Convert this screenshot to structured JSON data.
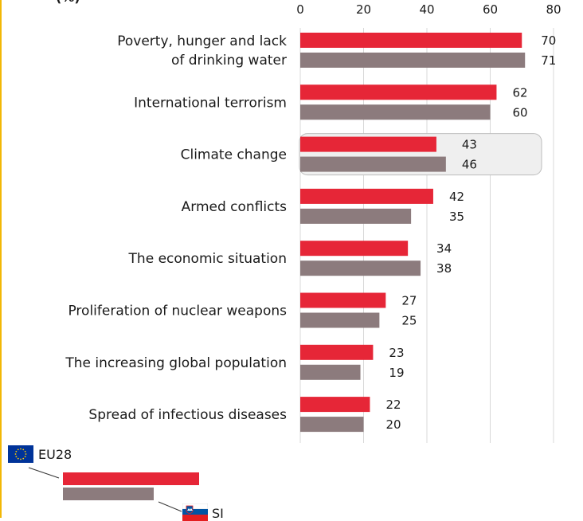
{
  "chart_data": {
    "type": "bar",
    "orientation": "horizontal",
    "unit_label": "(%)",
    "categories": [
      [
        "Poverty, hunger and lack",
        "of drinking water"
      ],
      [
        "International terrorism"
      ],
      [
        "Climate change"
      ],
      [
        "Armed conflicts"
      ],
      [
        "The economic situation"
      ],
      [
        "Proliferation of nuclear weapons"
      ],
      [
        "The increasing global population"
      ],
      [
        "Spread of infectious diseases"
      ]
    ],
    "series": [
      {
        "name": "EU28",
        "color": "#e62637",
        "values": [
          70,
          62,
          43,
          42,
          34,
          27,
          23,
          22
        ]
      },
      {
        "name": "SI",
        "color": "#8c7b7d",
        "values": [
          71,
          60,
          46,
          35,
          38,
          25,
          19,
          20
        ]
      }
    ],
    "xlim": [
      0,
      80
    ],
    "xticks": [
      0,
      20,
      40,
      60,
      80
    ],
    "grid": true,
    "highlighted_category": "Climate change",
    "legend_position": "bottom-left"
  },
  "legend": {
    "eu_label": "EU28",
    "si_label": "SI",
    "eu_flag_icon": "eu-flag-icon",
    "si_flag_icon": "slovenia-flag-icon"
  }
}
